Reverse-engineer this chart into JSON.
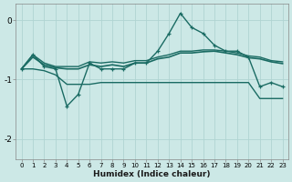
{
  "xlabel": "Humidex (Indice chaleur)",
  "bg_color": "#cce8e6",
  "grid_color": "#b0d4d2",
  "line_color": "#1a6b63",
  "xlim": [
    -0.5,
    23.5
  ],
  "ylim": [
    -2.35,
    0.28
  ],
  "yticks": [
    0,
    -1,
    -2
  ],
  "xticks": [
    0,
    1,
    2,
    3,
    4,
    5,
    6,
    7,
    8,
    9,
    10,
    11,
    12,
    13,
    14,
    15,
    16,
    17,
    18,
    19,
    20,
    21,
    22,
    23
  ],
  "lines": [
    {
      "x": [
        0,
        1,
        2,
        3,
        4,
        5,
        6,
        7,
        8,
        9,
        10,
        11,
        12,
        13,
        14,
        15,
        16,
        17,
        18,
        19,
        20,
        21,
        22,
        23
      ],
      "y": [
        -0.82,
        -0.58,
        -0.78,
        -0.82,
        -1.45,
        -1.25,
        -0.72,
        -0.82,
        -0.82,
        -0.82,
        -0.72,
        -0.72,
        -0.52,
        -0.22,
        0.12,
        -0.12,
        -0.22,
        -0.42,
        -0.52,
        -0.52,
        -0.62,
        -1.12,
        -1.05,
        -1.12
      ],
      "marker": true,
      "lw": 1.0
    },
    {
      "x": [
        0,
        1,
        2,
        3,
        4,
        5,
        6,
        7,
        8,
        9,
        10,
        11,
        12,
        13,
        14,
        15,
        16,
        17,
        18,
        19,
        20,
        21,
        22,
        23
      ],
      "y": [
        -0.82,
        -0.58,
        -0.72,
        -0.78,
        -0.78,
        -0.78,
        -0.7,
        -0.72,
        -0.7,
        -0.72,
        -0.68,
        -0.68,
        -0.62,
        -0.58,
        -0.52,
        -0.52,
        -0.5,
        -0.5,
        -0.52,
        -0.55,
        -0.6,
        -0.62,
        -0.68,
        -0.7
      ],
      "marker": false,
      "lw": 1.0
    },
    {
      "x": [
        0,
        1,
        2,
        3,
        4,
        5,
        6,
        7,
        8,
        9,
        10,
        11,
        12,
        13,
        14,
        15,
        16,
        17,
        18,
        19,
        20,
        21,
        22,
        23
      ],
      "y": [
        -0.82,
        -0.62,
        -0.75,
        -0.8,
        -0.82,
        -0.82,
        -0.75,
        -0.78,
        -0.75,
        -0.78,
        -0.72,
        -0.72,
        -0.65,
        -0.62,
        -0.55,
        -0.55,
        -0.53,
        -0.52,
        -0.55,
        -0.58,
        -0.63,
        -0.65,
        -0.7,
        -0.73
      ],
      "marker": false,
      "lw": 1.2
    },
    {
      "x": [
        0,
        1,
        2,
        3,
        4,
        5,
        6,
        7,
        8,
        9,
        10,
        11,
        12,
        13,
        14,
        15,
        16,
        17,
        18,
        19,
        20,
        21,
        22,
        23
      ],
      "y": [
        -0.82,
        -0.82,
        -0.85,
        -0.92,
        -1.08,
        -1.08,
        -1.08,
        -1.05,
        -1.05,
        -1.05,
        -1.05,
        -1.05,
        -1.05,
        -1.05,
        -1.05,
        -1.05,
        -1.05,
        -1.05,
        -1.05,
        -1.05,
        -1.05,
        -1.32,
        -1.32,
        -1.32
      ],
      "marker": false,
      "lw": 1.0
    }
  ]
}
